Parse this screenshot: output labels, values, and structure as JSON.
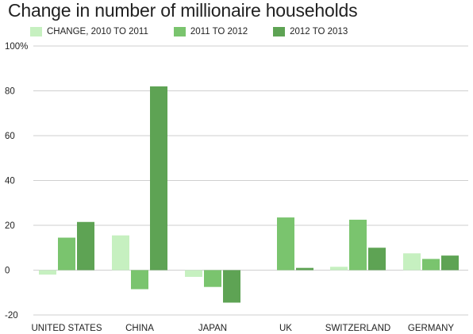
{
  "chart_data": {
    "type": "bar",
    "title": "Change in number of millionaire households",
    "xlabel": "",
    "ylabel": "",
    "categories": [
      "UNITED STATES",
      "CHINA",
      "JAPAN",
      "UK",
      "SWITZERLAND",
      "GERMANY"
    ],
    "series": [
      {
        "name": "CHANGE, 2010 TO 2011",
        "color": "#c6f0c0",
        "values": [
          -2,
          15.5,
          -3,
          0,
          1.5,
          7.5
        ]
      },
      {
        "name": "2011 TO 2012",
        "color": "#7ac46e",
        "values": [
          14.5,
          -8.5,
          -7.5,
          23.5,
          22.5,
          5
        ]
      },
      {
        "name": "2012 TO 2013",
        "color": "#5ea354",
        "values": [
          21.5,
          82,
          -14.5,
          1,
          10,
          6.5
        ]
      }
    ],
    "ylim": [
      -20,
      100
    ],
    "yticks": [
      -20,
      0,
      20,
      40,
      60,
      80,
      100
    ],
    "ytick_labels": [
      "-20",
      "0",
      "20",
      "40",
      "60",
      "80",
      "100%"
    ],
    "grid": true,
    "legend_position": "top-left"
  }
}
